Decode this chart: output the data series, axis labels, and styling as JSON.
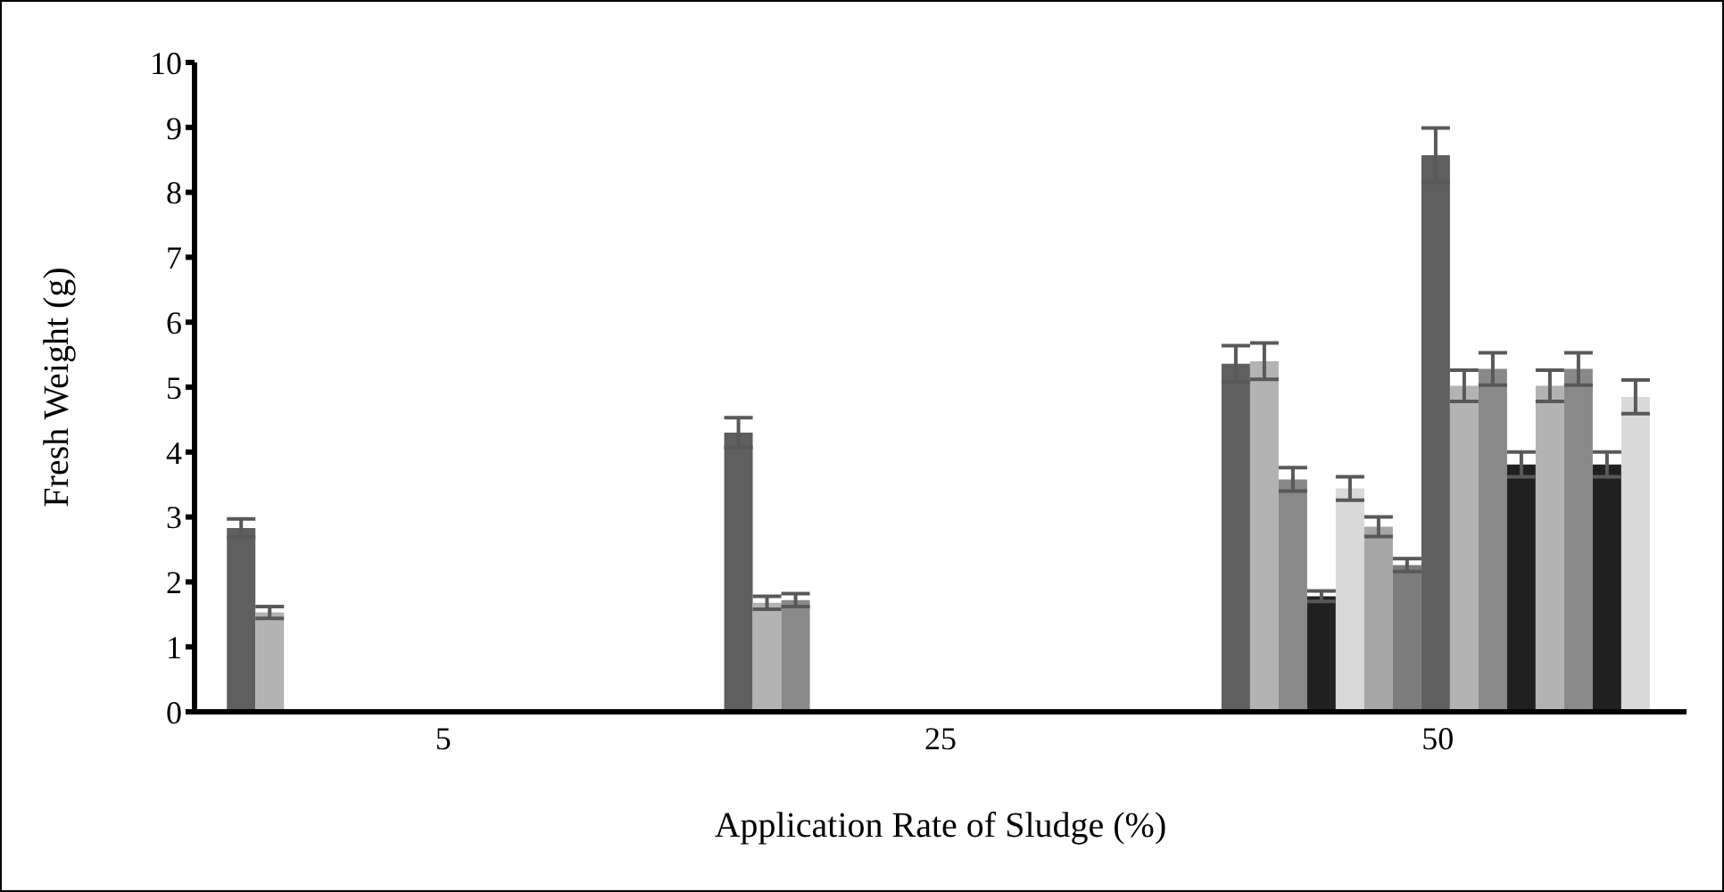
{
  "chart_data": {
    "type": "bar",
    "xlabel": "Application Rate of Sludge (%)",
    "ylabel": "Fresh  Weight (g)",
    "categories": [
      "5",
      "25",
      "50"
    ],
    "ylim": [
      0,
      10
    ],
    "yticks": [
      0,
      1,
      2,
      3,
      4,
      5,
      6,
      7,
      8,
      9,
      10
    ],
    "grid": false,
    "legend": false,
    "series": [
      {
        "color": "#5f5f5f",
        "values": [
          2.83,
          4.3,
          5.36
        ],
        "errors": [
          0.14,
          0.23,
          0.28
        ]
      },
      {
        "color": "#b3b3b3",
        "values": [
          1.53,
          1.68,
          5.4
        ],
        "errors": [
          0.09,
          0.1,
          0.28
        ]
      },
      {
        "color": "#898989",
        "values": [
          null,
          1.72,
          3.58
        ],
        "errors": [
          null,
          0.1,
          0.18
        ]
      },
      {
        "color": "#202020",
        "values": [
          null,
          null,
          1.78
        ],
        "errors": [
          null,
          null,
          0.08
        ]
      },
      {
        "color": "#d9d9d9",
        "values": [
          null,
          null,
          3.44
        ],
        "errors": [
          null,
          null,
          0.18
        ]
      },
      {
        "color": "#a6a6a6",
        "values": [
          null,
          null,
          2.85
        ],
        "errors": [
          null,
          null,
          0.15
        ]
      },
      {
        "color": "#7c7c7c",
        "values": [
          null,
          null,
          2.26
        ],
        "errors": [
          null,
          null,
          0.1
        ]
      },
      {
        "color": "#5f5f5f",
        "values": [
          null,
          null,
          8.57
        ],
        "errors": [
          null,
          null,
          0.42
        ]
      },
      {
        "color": "#b3b3b3",
        "values": [
          null,
          null,
          5.02
        ],
        "errors": [
          null,
          null,
          0.24
        ]
      },
      {
        "color": "#898989",
        "values": [
          null,
          null,
          5.28
        ],
        "errors": [
          null,
          null,
          0.25
        ]
      },
      {
        "color": "#202020",
        "values": [
          null,
          null,
          3.81
        ],
        "errors": [
          null,
          null,
          0.19
        ]
      },
      {
        "color": "#b3b3b3",
        "values": [
          null,
          null,
          5.02
        ],
        "errors": [
          null,
          null,
          0.24
        ]
      },
      {
        "color": "#898989",
        "values": [
          null,
          null,
          5.28
        ],
        "errors": [
          null,
          null,
          0.25
        ]
      },
      {
        "color": "#202020",
        "values": [
          null,
          null,
          3.81
        ],
        "errors": [
          null,
          null,
          0.19
        ]
      },
      {
        "color": "#d9d9d9",
        "values": [
          null,
          null,
          4.85
        ],
        "errors": [
          null,
          null,
          0.26
        ]
      }
    ]
  }
}
